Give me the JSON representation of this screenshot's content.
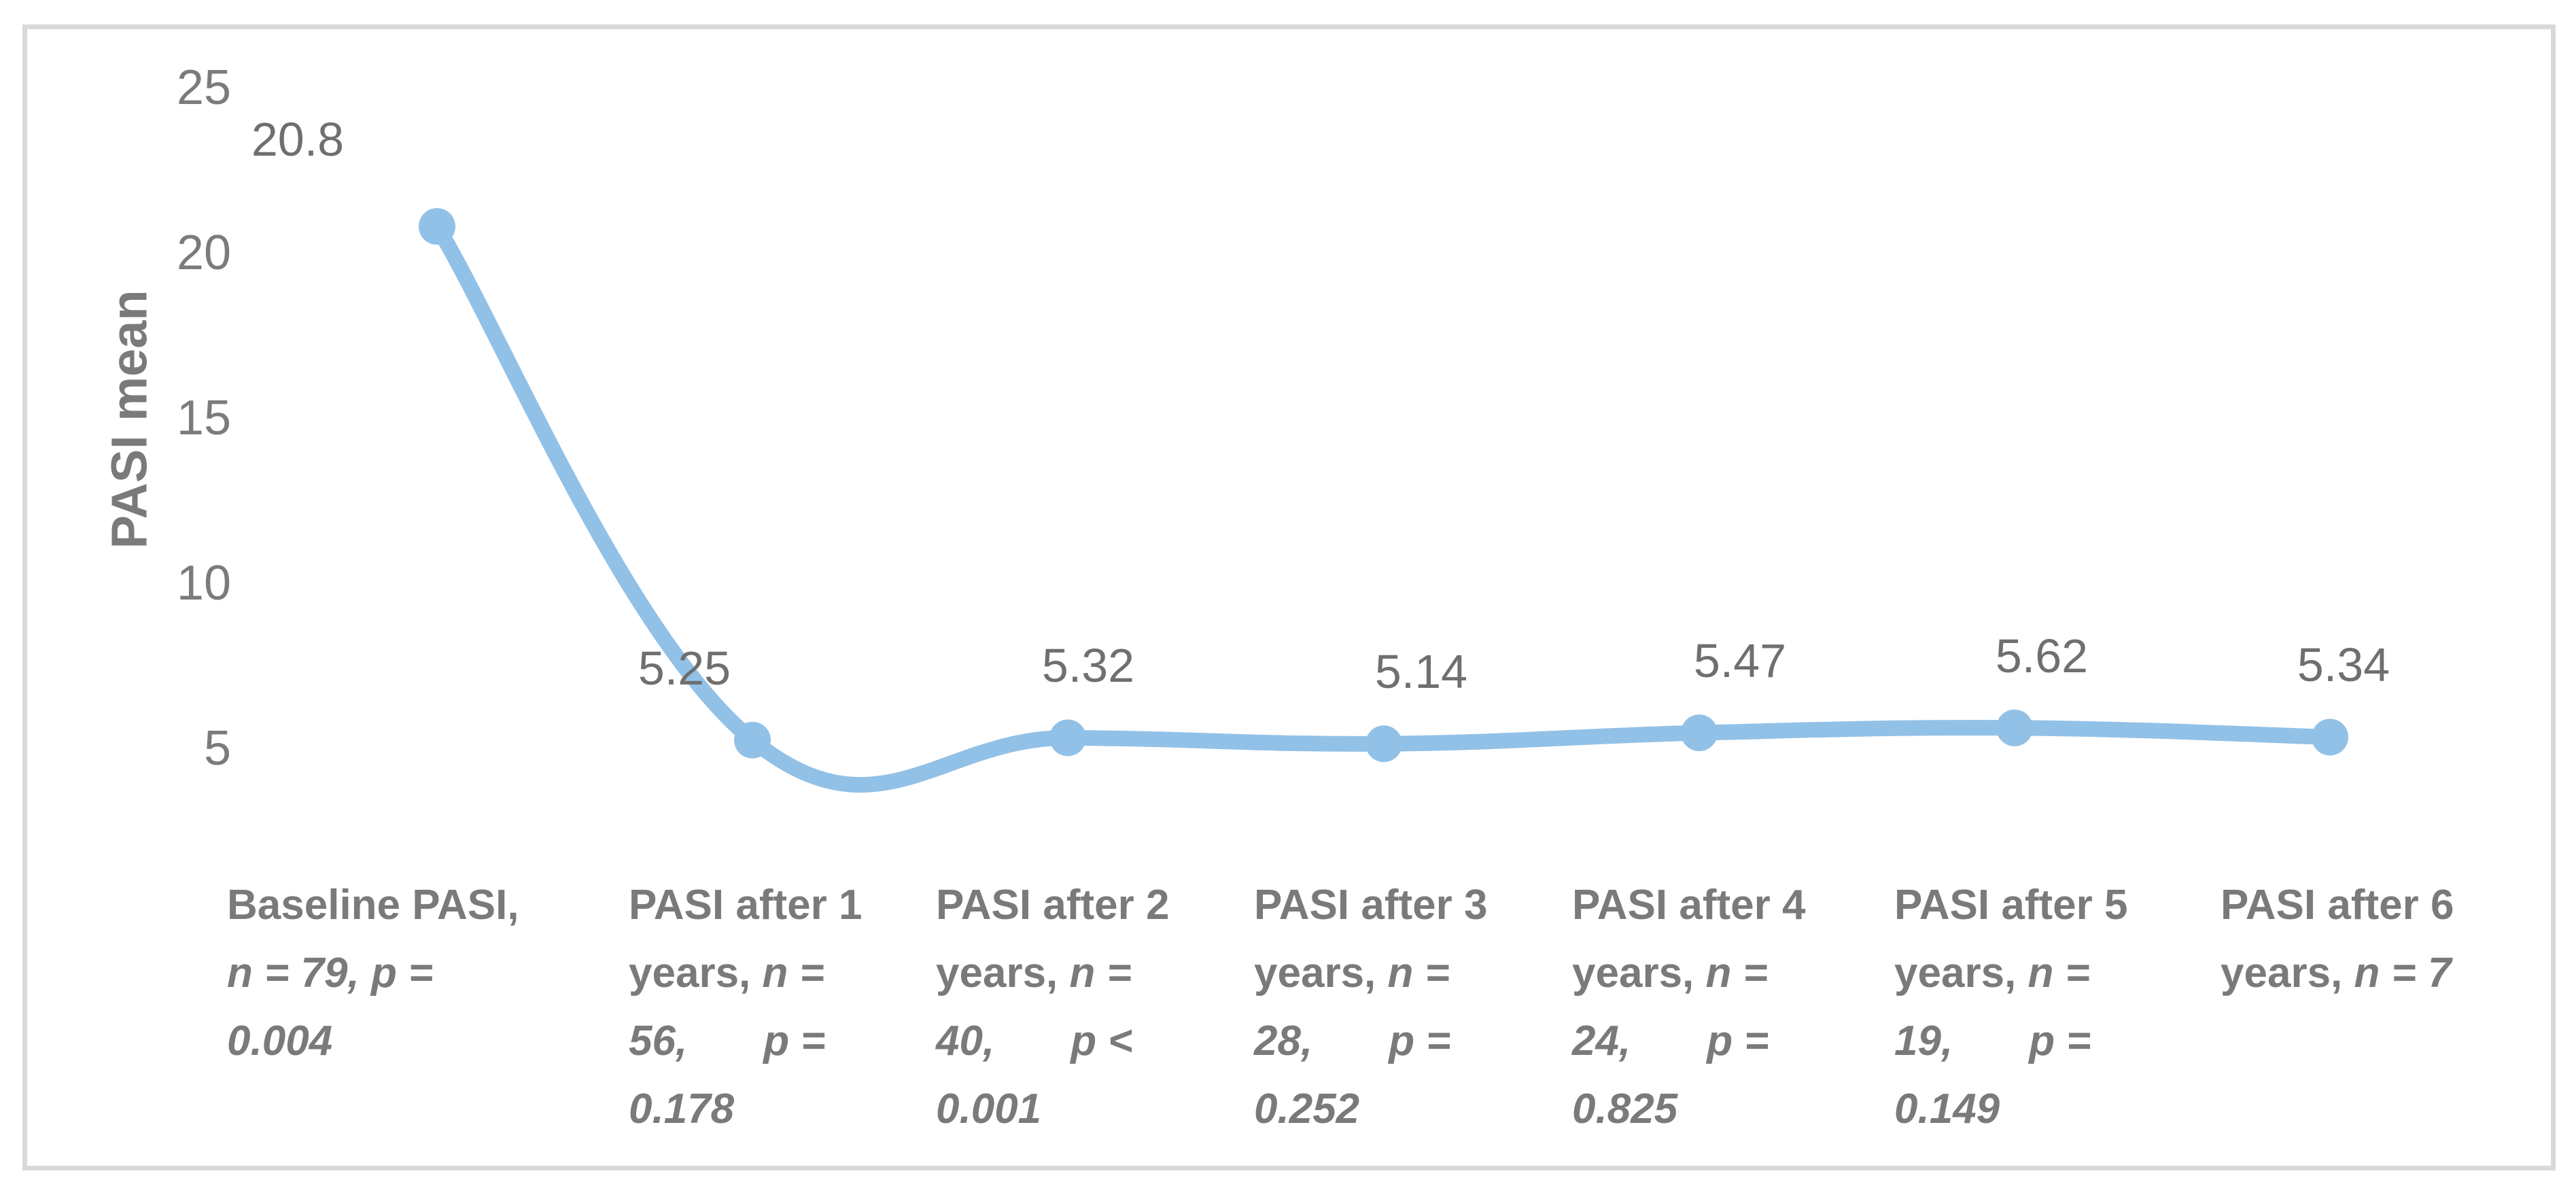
{
  "chart_data": {
    "type": "line",
    "title": "",
    "xlabel": "",
    "ylabel": "PASI mean",
    "y_ticks": [
      25,
      20,
      15,
      10,
      5
    ],
    "ylim": [
      2.5,
      26
    ],
    "grid": false,
    "legend_position": "none",
    "smooth": true,
    "markers": true,
    "categories": [
      "Baseline PASI, n = 79, p = 0.004",
      "PASI after 1 years, n = 56, p = 0.178",
      "PASI after 2 years, n = 40, p < 0.001",
      "PASI after 3 years, n = 28, p = 0.252",
      "PASI after 4 years, n = 24, p = 0.825",
      "PASI after 5 years, n = 19, p = 0.149",
      "PASI after 6 years, n = 7"
    ],
    "series": [
      {
        "name": "PASI mean",
        "values": [
          20.8,
          5.25,
          5.32,
          5.14,
          5.47,
          5.62,
          5.34
        ]
      }
    ],
    "data_labels": [
      "20.8",
      "5.25",
      "5.32",
      "5.14",
      "5.47",
      "5.62",
      "5.34"
    ]
  },
  "category_lines": [
    [
      [
        {
          "t": "Baseline PASI,"
        }
      ],
      [
        {
          "t": "n = 79, p =",
          "i": 1
        }
      ],
      [
        {
          "t": "0.004",
          "i": 1
        }
      ]
    ],
    [
      [
        {
          "t": "PASI after 1"
        }
      ],
      [
        {
          "t": "years, "
        },
        {
          "t": "n =",
          "i": 1
        }
      ],
      [
        {
          "t": "56,",
          "i": 1
        },
        {
          "g": 1
        },
        {
          "t": "p =",
          "i": 1
        }
      ],
      [
        {
          "t": "0.178",
          "i": 1
        }
      ]
    ],
    [
      [
        {
          "t": "PASI after 2"
        }
      ],
      [
        {
          "t": "years, "
        },
        {
          "t": "n =",
          "i": 1
        }
      ],
      [
        {
          "t": "40,",
          "i": 1
        },
        {
          "g": 1
        },
        {
          "t": "p <",
          "i": 1
        }
      ],
      [
        {
          "t": "0.001",
          "i": 1
        }
      ]
    ],
    [
      [
        {
          "t": "PASI after 3"
        }
      ],
      [
        {
          "t": "years, "
        },
        {
          "t": "n =",
          "i": 1
        }
      ],
      [
        {
          "t": "28,",
          "i": 1
        },
        {
          "g": 1
        },
        {
          "t": "p =",
          "i": 1
        }
      ],
      [
        {
          "t": "0.252",
          "i": 1
        }
      ]
    ],
    [
      [
        {
          "t": "PASI after 4"
        }
      ],
      [
        {
          "t": "years, "
        },
        {
          "t": "n =",
          "i": 1
        }
      ],
      [
        {
          "t": "24,",
          "i": 1
        },
        {
          "g": 1
        },
        {
          "t": "p =",
          "i": 1
        }
      ],
      [
        {
          "t": "0.825",
          "i": 1
        }
      ]
    ],
    [
      [
        {
          "t": "PASI after 5"
        }
      ],
      [
        {
          "t": "years, "
        },
        {
          "t": "n =",
          "i": 1
        }
      ],
      [
        {
          "t": "19,",
          "i": 1
        },
        {
          "g": 1
        },
        {
          "t": "p =",
          "i": 1
        }
      ],
      [
        {
          "t": "0.149",
          "i": 1
        }
      ]
    ],
    [
      [
        {
          "t": "PASI after 6"
        }
      ],
      [
        {
          "t": "years, "
        },
        {
          "t": "n = 7",
          "i": 1
        }
      ]
    ]
  ],
  "styles": {
    "line_color": "#92C1E7",
    "tick_color": "#7B7B7B",
    "data_label_color": "#6F6F6F",
    "category_color": "#7A7A7A",
    "frame_color": "#D9D9D9"
  }
}
